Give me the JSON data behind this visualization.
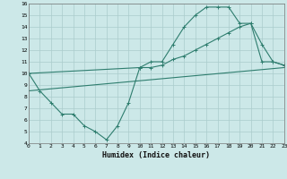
{
  "xlabel": "Humidex (Indice chaleur)",
  "xlim": [
    0,
    23
  ],
  "ylim": [
    4,
    16
  ],
  "xticks": [
    0,
    1,
    2,
    3,
    4,
    5,
    6,
    7,
    8,
    9,
    10,
    11,
    12,
    13,
    14,
    15,
    16,
    17,
    18,
    19,
    20,
    21,
    22,
    23
  ],
  "yticks": [
    4,
    5,
    6,
    7,
    8,
    9,
    10,
    11,
    12,
    13,
    14,
    15,
    16
  ],
  "bg_color": "#cce8e8",
  "line_color": "#2e7d6e",
  "grid_color": "#aacccc",
  "line1_x": [
    0,
    1,
    2,
    3,
    4,
    5,
    6,
    7,
    8,
    9,
    10,
    11,
    12,
    13,
    14,
    15,
    16,
    17,
    18,
    19,
    20,
    21,
    22,
    23
  ],
  "line1_y": [
    10,
    8.5,
    7.5,
    6.5,
    6.5,
    5.5,
    5.0,
    4.3,
    5.5,
    7.5,
    10.5,
    11.0,
    11.0,
    12.5,
    14.0,
    15.0,
    15.7,
    15.7,
    15.7,
    14.3,
    14.3,
    12.5,
    11.0,
    10.7
  ],
  "line2_x": [
    0,
    10,
    11,
    12,
    13,
    14,
    15,
    16,
    17,
    18,
    19,
    20,
    21,
    22,
    23
  ],
  "line2_y": [
    10,
    10.5,
    10.5,
    10.7,
    11.2,
    11.5,
    12.0,
    12.5,
    13.0,
    13.5,
    14.0,
    14.3,
    11.0,
    11.0,
    10.7
  ],
  "line3_x": [
    0,
    23
  ],
  "line3_y": [
    8.5,
    10.5
  ]
}
